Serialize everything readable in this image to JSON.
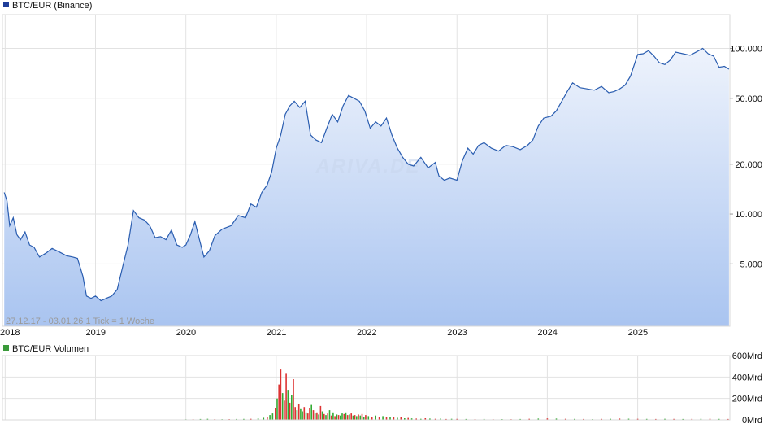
{
  "main_chart": {
    "legend_label": "BTC/EUR (Binance)",
    "legend_color": "#1f3d99",
    "info_text": "27.12.17 - 03.01.26   1 Tick = 1 Woche",
    "watermark": "ARIVA.DE",
    "line_color": "#2a5db0",
    "fill_top": "#eef3fc",
    "fill_bottom": "#a9c4f0"
  },
  "volume_chart": {
    "legend_label": "BTC/EUR Volumen",
    "legend_color": "#3a9a3a",
    "up_color": "#33aa33",
    "down_color": "#dd3333"
  },
  "chart_data": [
    {
      "type": "line",
      "title": "BTC/EUR (Binance)",
      "y_scale": "log",
      "grid": true,
      "legend_position": "top-left",
      "x_tick_labels": [
        "2018",
        "2019",
        "2020",
        "2021",
        "2022",
        "2023",
        "2024",
        "2025"
      ],
      "y_tick_labels": [
        "5.000",
        "10.000",
        "20.000",
        "50.000",
        "100.000"
      ],
      "y_ticks": [
        5000,
        10000,
        20000,
        50000,
        100000
      ],
      "ylim": [
        2100,
        160000
      ],
      "series": [
        {
          "name": "BTC/EUR (Binance)",
          "x": [
            2017.99,
            2018.02,
            2018.05,
            2018.09,
            2018.13,
            2018.17,
            2018.22,
            2018.27,
            2018.32,
            2018.38,
            2018.45,
            2018.52,
            2018.6,
            2018.68,
            2018.75,
            2018.8,
            2018.86,
            2018.9,
            2018.95,
            2019.0,
            2019.06,
            2019.12,
            2019.18,
            2019.24,
            2019.3,
            2019.36,
            2019.42,
            2019.48,
            2019.54,
            2019.6,
            2019.66,
            2019.72,
            2019.78,
            2019.84,
            2019.9,
            2019.96,
            2020.0,
            2020.05,
            2020.1,
            2020.15,
            2020.2,
            2020.26,
            2020.32,
            2020.4,
            2020.5,
            2020.58,
            2020.66,
            2020.72,
            2020.78,
            2020.84,
            2020.9,
            2020.95,
            2021.0,
            2021.05,
            2021.1,
            2021.15,
            2021.2,
            2021.26,
            2021.32,
            2021.38,
            2021.44,
            2021.5,
            2021.56,
            2021.62,
            2021.68,
            2021.74,
            2021.8,
            2021.86,
            2021.92,
            2021.98,
            2022.04,
            2022.1,
            2022.16,
            2022.22,
            2022.28,
            2022.34,
            2022.4,
            2022.46,
            2022.52,
            2022.6,
            2022.68,
            2022.76,
            2022.8,
            2022.86,
            2022.92,
            2023.0,
            2023.06,
            2023.12,
            2023.18,
            2023.24,
            2023.3,
            2023.38,
            2023.46,
            2023.54,
            2023.62,
            2023.7,
            2023.78,
            2023.84,
            2023.9,
            2023.96,
            2024.04,
            2024.1,
            2024.16,
            2024.22,
            2024.28,
            2024.36,
            2024.44,
            2024.52,
            2024.6,
            2024.68,
            2024.74,
            2024.8,
            2024.86,
            2024.92,
            2025.0,
            2025.06,
            2025.12,
            2025.18,
            2025.24,
            2025.3,
            2025.36,
            2025.42,
            2025.5,
            2025.58,
            2025.66,
            2025.72,
            2025.78,
            2025.84,
            2025.9,
            2025.96,
            2026.01
          ],
          "y": [
            13500,
            12000,
            8500,
            9500,
            7500,
            7000,
            7800,
            6500,
            6300,
            5500,
            5800,
            6200,
            5900,
            5600,
            5500,
            5400,
            4200,
            3200,
            3100,
            3200,
            3000,
            3100,
            3200,
            3500,
            4800,
            6500,
            10500,
            9500,
            9200,
            8500,
            7200,
            7300,
            7000,
            8000,
            6500,
            6300,
            6500,
            7500,
            9000,
            7000,
            5500,
            6000,
            7400,
            8100,
            8500,
            9800,
            9500,
            11500,
            11000,
            13500,
            15000,
            18000,
            25000,
            30000,
            40000,
            45000,
            48000,
            44000,
            48000,
            30000,
            28000,
            27000,
            33000,
            40000,
            36000,
            45000,
            52000,
            50000,
            48000,
            42000,
            33000,
            36000,
            34000,
            38000,
            30000,
            25000,
            22000,
            20000,
            19500,
            22000,
            19000,
            20500,
            17000,
            16000,
            16500,
            16000,
            21000,
            25000,
            23000,
            26000,
            27000,
            25000,
            24000,
            26000,
            25500,
            24500,
            26000,
            28000,
            34000,
            38000,
            39000,
            42000,
            48000,
            55000,
            62000,
            58000,
            57000,
            56000,
            59000,
            54000,
            55000,
            57000,
            60000,
            68000,
            92000,
            93000,
            97000,
            90000,
            82000,
            80000,
            85000,
            95000,
            93000,
            91000,
            96000,
            100000,
            93000,
            90000,
            77000,
            78000,
            75000
          ],
          "color": "#2a5db0"
        }
      ]
    },
    {
      "type": "bar",
      "title": "BTC/EUR Volumen",
      "grid": true,
      "legend_position": "top-left",
      "y_tick_labels": [
        "0Mrd",
        "200Mrd",
        "400Mrd",
        "600Mrd"
      ],
      "y_ticks": [
        0,
        200,
        400,
        600
      ],
      "ylim": [
        0,
        600
      ],
      "unit": "Mrd",
      "series": [
        {
          "name": "BTC/EUR Volumen",
          "x": [
            2020.0,
            2020.08,
            2020.16,
            2020.24,
            2020.32,
            2020.4,
            2020.48,
            2020.56,
            2020.64,
            2020.72,
            2020.8,
            2020.86,
            2020.9,
            2020.93,
            2020.96,
            2020.99,
            2021.01,
            2021.03,
            2021.05,
            2021.07,
            2021.09,
            2021.11,
            2021.13,
            2021.15,
            2021.17,
            2021.19,
            2021.21,
            2021.23,
            2021.25,
            2021.27,
            2021.29,
            2021.31,
            2021.33,
            2021.35,
            2021.37,
            2021.39,
            2021.41,
            2021.43,
            2021.45,
            2021.47,
            2021.49,
            2021.51,
            2021.53,
            2021.55,
            2021.57,
            2021.59,
            2021.61,
            2021.63,
            2021.65,
            2021.67,
            2021.69,
            2021.71,
            2021.73,
            2021.75,
            2021.77,
            2021.79,
            2021.81,
            2021.83,
            2021.85,
            2021.87,
            2021.89,
            2021.91,
            2021.93,
            2021.95,
            2021.97,
            2021.99,
            2022.02,
            2022.06,
            2022.1,
            2022.14,
            2022.18,
            2022.22,
            2022.26,
            2022.3,
            2022.34,
            2022.38,
            2022.42,
            2022.46,
            2022.5,
            2022.55,
            2022.6,
            2022.65,
            2022.7,
            2022.76,
            2022.82,
            2022.88,
            2022.94,
            2023.0,
            2023.1,
            2023.2,
            2023.3,
            2023.4,
            2023.5,
            2023.6,
            2023.7,
            2023.8,
            2023.9,
            2024.0,
            2024.1,
            2024.2,
            2024.3,
            2024.4,
            2024.5,
            2024.6,
            2024.7,
            2024.8,
            2024.9,
            2025.0,
            2025.1,
            2025.2,
            2025.3,
            2025.4,
            2025.5,
            2025.6,
            2025.7,
            2025.8,
            2025.9,
            2026.0
          ],
          "values": [
            5,
            6,
            8,
            10,
            7,
            6,
            7,
            8,
            9,
            10,
            14,
            20,
            30,
            45,
            60,
            110,
            200,
            330,
            470,
            250,
            180,
            430,
            280,
            160,
            230,
            380,
            120,
            90,
            150,
            100,
            80,
            120,
            70,
            60,
            110,
            140,
            90,
            60,
            70,
            50,
            130,
            80,
            55,
            45,
            60,
            90,
            40,
            70,
            35,
            50,
            45,
            40,
            60,
            55,
            70,
            45,
            50,
            60,
            40,
            45,
            35,
            50,
            40,
            55,
            30,
            45,
            35,
            30,
            40,
            30,
            35,
            25,
            30,
            25,
            20,
            25,
            15,
            18,
            14,
            12,
            10,
            15,
            12,
            10,
            12,
            8,
            10,
            9,
            8,
            7,
            8,
            6,
            7,
            6,
            8,
            10,
            12,
            14,
            12,
            10,
            9,
            8,
            7,
            9,
            10,
            12,
            11,
            10,
            9,
            8,
            10,
            9,
            8,
            9,
            10,
            11,
            9,
            8
          ],
          "up": [
            true,
            false,
            true,
            true,
            false,
            true,
            false,
            true,
            true,
            false,
            true,
            true,
            false,
            true,
            true,
            false,
            true,
            false,
            false,
            true,
            false,
            false,
            true,
            false,
            true,
            false,
            false,
            true,
            false,
            true,
            true,
            false,
            true,
            false,
            false,
            true,
            false,
            true,
            false,
            true,
            false,
            true,
            false,
            true,
            false,
            true,
            false,
            true,
            false,
            true,
            false,
            true,
            true,
            false,
            true,
            false,
            true,
            false,
            true,
            false,
            true,
            false,
            true,
            false,
            true,
            false,
            true,
            false,
            true,
            false,
            true,
            false,
            true,
            false,
            true,
            false,
            true,
            false,
            true,
            false,
            true,
            false,
            true,
            false,
            true,
            false,
            true,
            false,
            true,
            false,
            true,
            false,
            true,
            false,
            true,
            false,
            true,
            false,
            true,
            false,
            true,
            false,
            true,
            false,
            true,
            false,
            true,
            false,
            true,
            false,
            true,
            false,
            true,
            false,
            true,
            false,
            true,
            false
          ]
        }
      ]
    }
  ]
}
